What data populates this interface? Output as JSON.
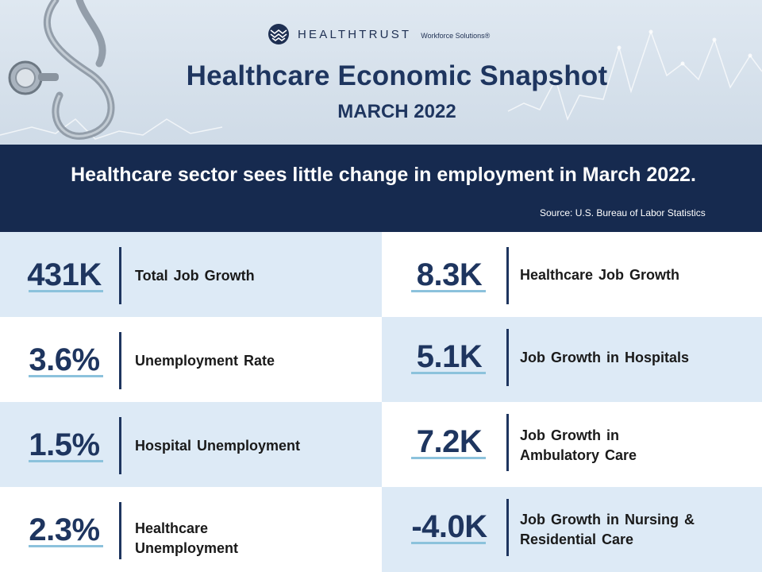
{
  "logo": {
    "icon": "healthtrust-logo-mark",
    "name": "HEALTHTRUST",
    "sub": "Workforce Solutions®"
  },
  "header": {
    "title": "Healthcare Economic Snapshot",
    "subtitle": "MARCH 2022"
  },
  "banner": {
    "headline": "Healthcare sector sees little change in employment in March 2022.",
    "source": "Source: U.S. Bureau of Labor Statistics"
  },
  "colors": {
    "navy": "#162a4f",
    "light_blue": "#ddeaf6",
    "accent_underline": "#8cc2dc",
    "text_navy": "#1e355f"
  },
  "stats_left": [
    {
      "value": "431K",
      "label_lines": [
        "Total Job Growth"
      ]
    },
    {
      "value": "3.6%",
      "label_lines": [
        "Unemployment Rate"
      ]
    },
    {
      "value": "1.5%",
      "label_lines": [
        "Hospital Unemployment"
      ]
    },
    {
      "value": "2.3%",
      "label_lines": [
        "Healthcare",
        "Unemployment"
      ]
    }
  ],
  "stats_right": [
    {
      "value": "8.3K",
      "label_lines": [
        "Healthcare Job Growth"
      ]
    },
    {
      "value": "5.1K",
      "label_lines": [
        "Job Growth in Hospitals"
      ]
    },
    {
      "value": "7.2K",
      "label_lines": [
        "Job Growth in",
        "Ambulatory Care"
      ]
    },
    {
      "value": "-4.0K",
      "label_lines": [
        "Job Growth in Nursing &",
        "Residential Care"
      ]
    }
  ]
}
